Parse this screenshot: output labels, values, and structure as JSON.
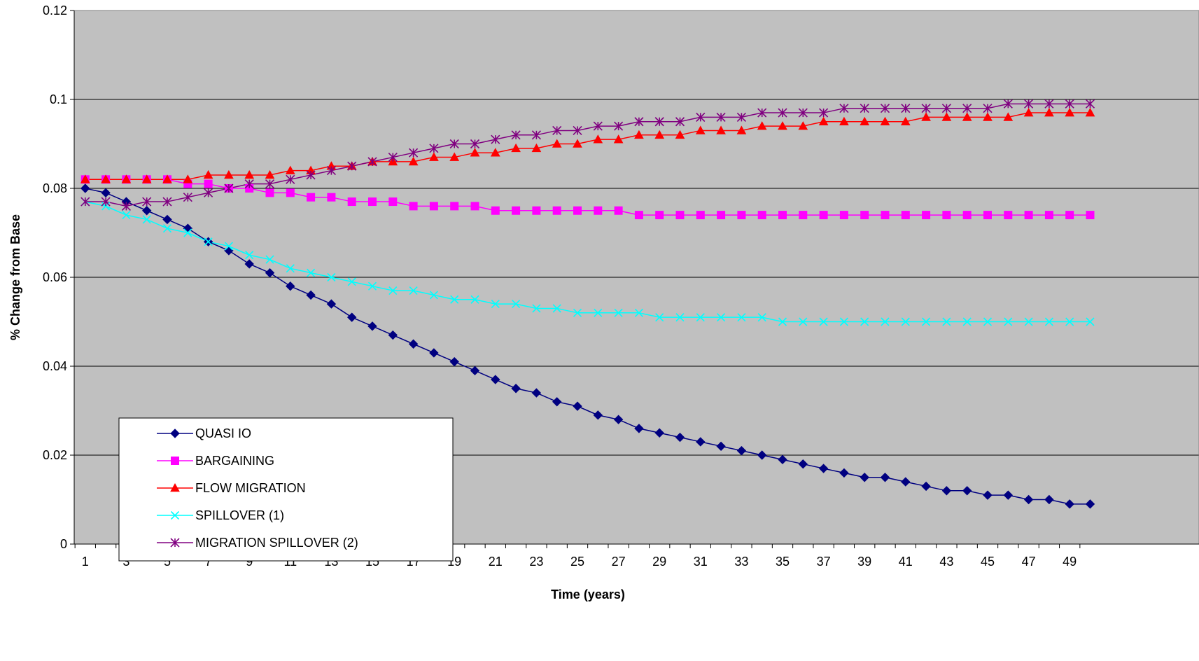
{
  "chart_data": {
    "type": "line",
    "title": "",
    "xlabel": "Time (years)",
    "ylabel": "% Change from Base",
    "x": [
      1,
      2,
      3,
      4,
      5,
      6,
      7,
      8,
      9,
      10,
      11,
      12,
      13,
      14,
      15,
      16,
      17,
      18,
      19,
      20,
      21,
      22,
      23,
      24,
      25,
      26,
      27,
      28,
      29,
      30,
      31,
      32,
      33,
      34,
      35,
      36,
      37,
      38,
      39,
      40,
      41,
      42,
      43,
      44,
      45,
      46,
      47,
      48,
      49,
      50
    ],
    "xlim": [
      1,
      50
    ],
    "x_tick_labels": [
      "1",
      "3",
      "5",
      "7",
      "9",
      "11",
      "13",
      "15",
      "17",
      "19",
      "21",
      "23",
      "25",
      "27",
      "29",
      "31",
      "33",
      "35",
      "37",
      "39",
      "41",
      "43",
      "45",
      "47",
      "49"
    ],
    "ylim": [
      0,
      0.12
    ],
    "y_tick_labels": [
      "0",
      "0.02",
      "0.04",
      "0.06",
      "0.08",
      "0.1",
      "0.12"
    ],
    "grid": "horizontal",
    "plot_background": "#C0C0C0",
    "legend_position": "bottom-left",
    "series": [
      {
        "name": "QUASI IO",
        "color": "#000080",
        "marker": "diamond",
        "values": [
          0.08,
          0.079,
          0.077,
          0.075,
          0.073,
          0.071,
          0.068,
          0.066,
          0.063,
          0.061,
          0.058,
          0.056,
          0.054,
          0.051,
          0.049,
          0.047,
          0.045,
          0.043,
          0.041,
          0.039,
          0.037,
          0.035,
          0.034,
          0.032,
          0.031,
          0.029,
          0.028,
          0.026,
          0.025,
          0.024,
          0.023,
          0.022,
          0.021,
          0.02,
          0.019,
          0.018,
          0.017,
          0.016,
          0.015,
          0.015,
          0.014,
          0.013,
          0.012,
          0.012,
          0.011,
          0.011,
          0.01,
          0.01,
          0.009,
          0.009
        ]
      },
      {
        "name": "BARGAINING",
        "color": "#FF00FF",
        "marker": "square",
        "values": [
          0.082,
          0.082,
          0.082,
          0.082,
          0.082,
          0.081,
          0.081,
          0.08,
          0.08,
          0.079,
          0.079,
          0.078,
          0.078,
          0.077,
          0.077,
          0.077,
          0.076,
          0.076,
          0.076,
          0.076,
          0.075,
          0.075,
          0.075,
          0.075,
          0.075,
          0.075,
          0.075,
          0.074,
          0.074,
          0.074,
          0.074,
          0.074,
          0.074,
          0.074,
          0.074,
          0.074,
          0.074,
          0.074,
          0.074,
          0.074,
          0.074,
          0.074,
          0.074,
          0.074,
          0.074,
          0.074,
          0.074,
          0.074,
          0.074,
          0.074
        ]
      },
      {
        "name": "FLOW MIGRATION",
        "color": "#FF0000",
        "marker": "triangle",
        "values": [
          0.082,
          0.082,
          0.082,
          0.082,
          0.082,
          0.082,
          0.083,
          0.083,
          0.083,
          0.083,
          0.084,
          0.084,
          0.085,
          0.085,
          0.086,
          0.086,
          0.086,
          0.087,
          0.087,
          0.088,
          0.088,
          0.089,
          0.089,
          0.09,
          0.09,
          0.091,
          0.091,
          0.092,
          0.092,
          0.092,
          0.093,
          0.093,
          0.093,
          0.094,
          0.094,
          0.094,
          0.095,
          0.095,
          0.095,
          0.095,
          0.095,
          0.096,
          0.096,
          0.096,
          0.096,
          0.096,
          0.097,
          0.097,
          0.097,
          0.097
        ]
      },
      {
        "name": "SPILLOVER (1)",
        "color": "#00FFFF",
        "marker": "x",
        "values": [
          0.077,
          0.076,
          0.074,
          0.073,
          0.071,
          0.07,
          0.068,
          0.067,
          0.065,
          0.064,
          0.062,
          0.061,
          0.06,
          0.059,
          0.058,
          0.057,
          0.057,
          0.056,
          0.055,
          0.055,
          0.054,
          0.054,
          0.053,
          0.053,
          0.052,
          0.052,
          0.052,
          0.052,
          0.051,
          0.051,
          0.051,
          0.051,
          0.051,
          0.051,
          0.05,
          0.05,
          0.05,
          0.05,
          0.05,
          0.05,
          0.05,
          0.05,
          0.05,
          0.05,
          0.05,
          0.05,
          0.05,
          0.05,
          0.05,
          0.05
        ]
      },
      {
        "name": "MIGRATION SPILLOVER (2)",
        "color": "#800080",
        "marker": "asterisk",
        "values": [
          0.077,
          0.077,
          0.076,
          0.077,
          0.077,
          0.078,
          0.079,
          0.08,
          0.081,
          0.081,
          0.082,
          0.083,
          0.084,
          0.085,
          0.086,
          0.087,
          0.088,
          0.089,
          0.09,
          0.09,
          0.091,
          0.092,
          0.092,
          0.093,
          0.093,
          0.094,
          0.094,
          0.095,
          0.095,
          0.095,
          0.096,
          0.096,
          0.096,
          0.097,
          0.097,
          0.097,
          0.097,
          0.098,
          0.098,
          0.098,
          0.098,
          0.098,
          0.098,
          0.098,
          0.098,
          0.099,
          0.099,
          0.099,
          0.099,
          0.099
        ]
      }
    ]
  }
}
